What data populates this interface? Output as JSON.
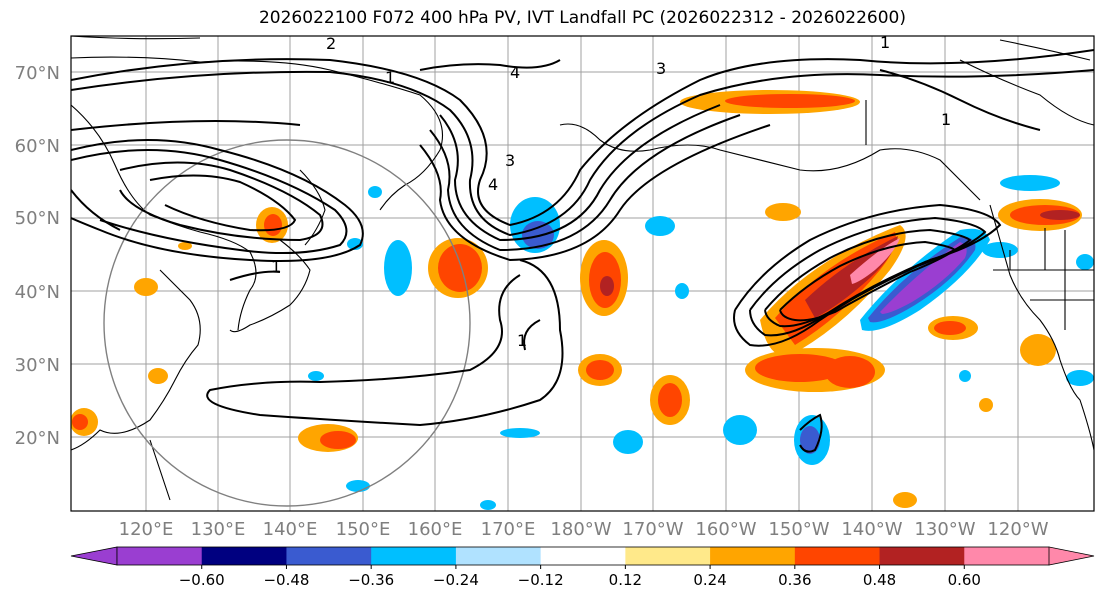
{
  "title": "2026022100 F072 400 hPa PV, IVT Landfall PC (2026022312 - 2026022600)",
  "lat_labels": [
    "70°N",
    "60°N",
    "50°N",
    "40°N",
    "30°N",
    "20°N"
  ],
  "lon_labels": [
    "120°E",
    "130°E",
    "140°E",
    "150°E",
    "160°E",
    "170°E",
    "180°W",
    "170°W",
    "160°W",
    "150°W",
    "140°W",
    "130°W",
    "120°W"
  ],
  "colorbar": {
    "tick_labels": [
      "−0.60",
      "−0.48",
      "−0.36",
      "−0.24",
      "−0.12",
      "0.12",
      "0.24",
      "0.36",
      "0.48",
      "0.60"
    ],
    "colors": [
      "#9a3ed1",
      "#000080",
      "#3a5bd0",
      "#00bfff",
      "#b0e2ff",
      "#ffffff",
      "#ffe98a",
      "#ffa500",
      "#ff4500",
      "#b22222",
      "#ff88aa"
    ]
  },
  "contour_labels": [
    "2",
    "1",
    "4",
    "3",
    "3",
    "4",
    "1",
    "1",
    "1",
    "1"
  ],
  "colors": {
    "gridline": "#a0a0a0",
    "coast": "#000000",
    "circle": "#808080"
  }
}
